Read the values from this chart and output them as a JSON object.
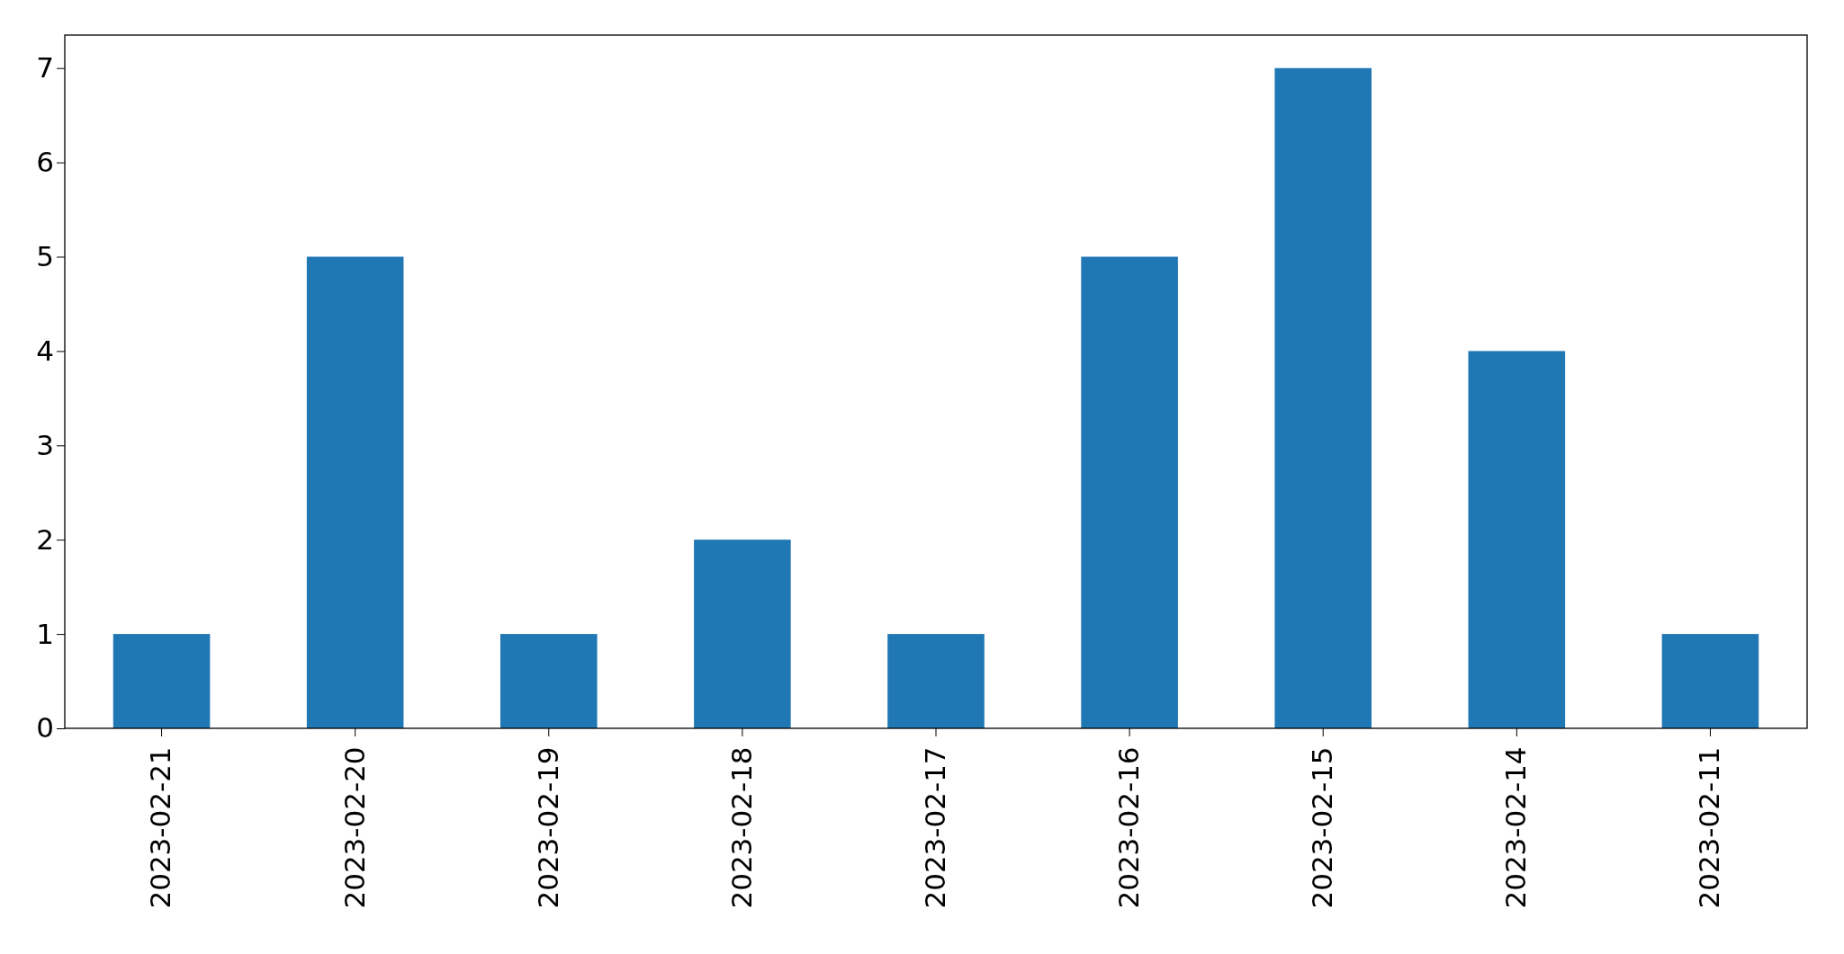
{
  "chart_data": {
    "type": "bar",
    "categories": [
      "2023-02-21",
      "2023-02-20",
      "2023-02-19",
      "2023-02-18",
      "2023-02-17",
      "2023-02-16",
      "2023-02-15",
      "2023-02-14",
      "2023-02-11"
    ],
    "values": [
      1,
      5,
      1,
      2,
      1,
      5,
      7,
      4,
      1
    ],
    "color": "#1f77b4",
    "ylim": [
      0,
      7.35
    ],
    "yticks": [
      0,
      1,
      2,
      3,
      4,
      5,
      6,
      7
    ],
    "grid": false
  }
}
